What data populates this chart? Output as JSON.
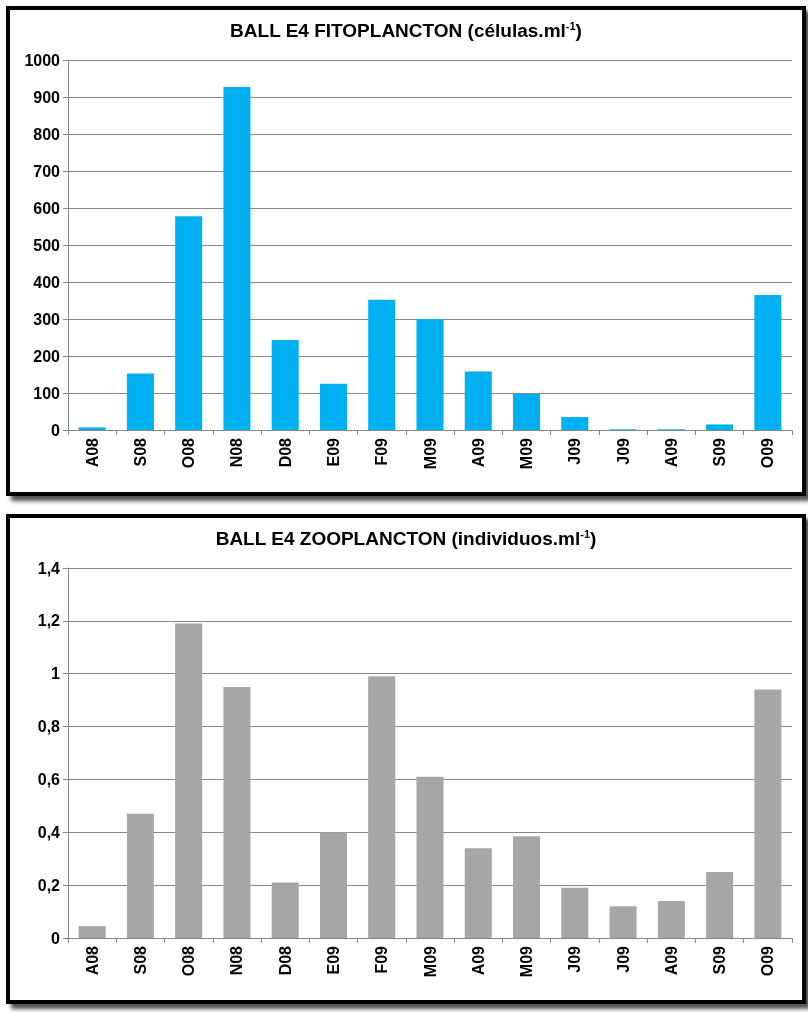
{
  "chart_data": [
    {
      "type": "bar",
      "title": "BALL E4 FITOPLANCTON (células.ml$^{-1}$)",
      "categories": [
        "A08",
        "S08",
        "O08",
        "N08",
        "D08",
        "E09",
        "F09",
        "M09",
        "A09",
        "M09",
        "J09",
        "J09",
        "A09",
        "S09",
        "O09"
      ],
      "values": [
        7,
        153,
        578,
        927,
        243,
        125,
        352,
        300,
        158,
        97,
        35,
        2,
        2,
        15,
        365
      ],
      "color": "#00b0f0",
      "ylim": [
        0,
        1000
      ],
      "yticks": [
        0,
        100,
        200,
        300,
        400,
        500,
        600,
        700,
        800,
        900,
        1000
      ],
      "grid": "y"
    },
    {
      "type": "bar",
      "title": "BALL E4 ZOOPLANCTON (individuos.ml$^{-1}$)",
      "categories": [
        "A08",
        "S08",
        "O08",
        "N08",
        "D08",
        "E09",
        "F09",
        "M09",
        "A09",
        "M09",
        "J09",
        "J09",
        "A09",
        "S09",
        "O09"
      ],
      "values": [
        0.045,
        0.47,
        1.19,
        0.95,
        0.21,
        0.4,
        0.99,
        0.61,
        0.34,
        0.385,
        0.19,
        0.12,
        0.14,
        0.25,
        0.94
      ],
      "color": "#a6a6a6",
      "ylim": [
        0,
        1.4
      ],
      "yticks": [
        0,
        {
          "value": 0.2,
          "label": "0,2"
        },
        {
          "value": 0.4,
          "label": "0,4"
        },
        {
          "value": 0.6,
          "label": "0,6"
        },
        {
          "value": 0.8,
          "label": "0,8"
        },
        1,
        {
          "value": 1.2,
          "label": "1,2"
        },
        {
          "value": 1.4,
          "label": "1,4"
        }
      ],
      "grid": "y"
    }
  ]
}
